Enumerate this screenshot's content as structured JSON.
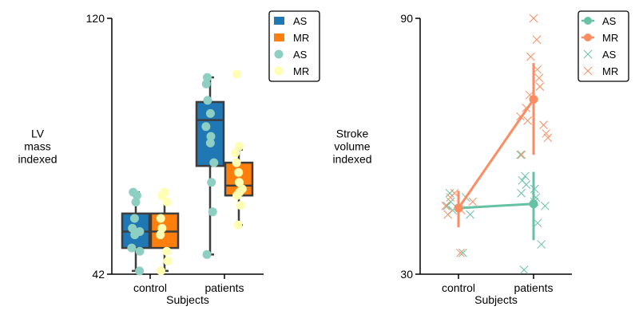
{
  "chart_data": [
    {
      "type": "box",
      "xlabel": "Subjects",
      "ylabel": "LV mass indexed",
      "ylim": [
        42,
        120
      ],
      "yticks": [
        42,
        120
      ],
      "categories": [
        "control",
        "patients"
      ],
      "grid": false,
      "legend_placement": "top-right",
      "legend": [
        {
          "label": "AS",
          "kind": "box",
          "color": "#1f77b4"
        },
        {
          "label": "MR",
          "kind": "box",
          "color": "#ff7f0e"
        },
        {
          "label": "AS",
          "kind": "point",
          "color": "#8ecfc4"
        },
        {
          "label": "MR",
          "kind": "point",
          "color": "#ffffb3"
        }
      ],
      "series": [
        {
          "name": "AS",
          "color": "#1f77b4",
          "point_color": "#8ecfc4",
          "boxes": [
            {
              "category": "control",
              "whisker_low": 43,
              "q1": 50,
              "median": 55,
              "q3": 60.5,
              "whisker_high": 67
            },
            {
              "category": "patients",
              "whisker_low": 48,
              "q1": 75,
              "median": 89,
              "q3": 94.5,
              "whisker_high": 102
            }
          ],
          "points": [
            {
              "category": "control",
              "values": [
                43,
                49,
                50,
                54,
                55,
                56,
                59,
                64,
                66,
                67
              ]
            },
            {
              "category": "patients",
              "values": [
                48,
                61,
                70,
                76,
                82,
                84,
                87,
                91,
                95,
                100,
                102
              ]
            }
          ]
        },
        {
          "name": "MR",
          "color": "#ff7f0e",
          "point_color": "#ffffb3",
          "boxes": [
            {
              "category": "control",
              "whisker_low": 43,
              "q1": 50,
              "median": 55,
              "q3": 60.5,
              "whisker_high": 67
            },
            {
              "category": "patients",
              "whisker_low": 57,
              "q1": 66,
              "median": 69,
              "q3": 76,
              "whisker_high": 80
            }
          ],
          "points": [
            {
              "category": "control",
              "values": [
                43,
                46,
                49,
                54,
                56,
                59,
                64,
                66,
                67
              ]
            },
            {
              "category": "patients",
              "values": [
                57,
                63,
                66,
                67,
                68,
                70,
                73,
                76,
                79,
                81,
                103
              ]
            }
          ]
        }
      ]
    },
    {
      "type": "line",
      "xlabel": "Subjects",
      "ylabel": "Stroke volume indexed",
      "ylim": [
        30,
        90
      ],
      "yticks": [
        30,
        90
      ],
      "categories": [
        "control",
        "patients"
      ],
      "grid": false,
      "legend_placement": "top-right",
      "legend": [
        {
          "label": "AS",
          "kind": "line-marker",
          "color": "#66c2a5"
        },
        {
          "label": "MR",
          "kind": "line-marker",
          "color": "#fc8d62"
        },
        {
          "label": "AS",
          "kind": "x-marker",
          "color": "#66c2a5"
        },
        {
          "label": "MR",
          "kind": "x-marker",
          "color": "#fc8d62"
        }
      ],
      "series": [
        {
          "name": "AS",
          "color": "#66c2a5",
          "means": [
            45.5,
            46.5
          ],
          "ci_low": [
            41.5,
            38
          ],
          "ci_high": [
            49.5,
            54
          ],
          "points": [
            {
              "category": "control",
              "values": [
                35,
                44,
                45,
                46,
                47,
                48,
                49
              ]
            },
            {
              "category": "patients",
              "values": [
                31,
                37,
                42,
                46,
                47,
                48,
                49,
                50,
                51,
                52,
                53,
                58
              ]
            }
          ]
        },
        {
          "name": "MR",
          "color": "#fc8d62",
          "means": [
            45.5,
            71
          ],
          "ci_low": [
            41,
            58
          ],
          "ci_high": [
            49.5,
            79.5
          ],
          "points": [
            {
              "category": "control",
              "values": [
                35,
                44,
                45,
                46,
                47,
                48,
                49
              ]
            },
            {
              "category": "patients",
              "values": [
                58,
                62,
                63,
                65,
                66,
                67,
                69,
                72,
                74,
                76,
                78,
                81,
                85,
                90
              ]
            }
          ]
        }
      ]
    }
  ]
}
